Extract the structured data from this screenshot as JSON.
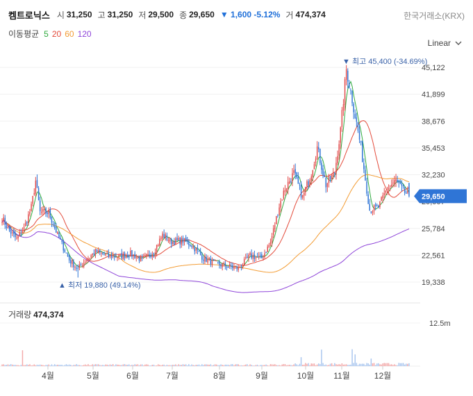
{
  "header": {
    "name": "켐트로닉스",
    "open_label": "시",
    "open": "31,250",
    "high_label": "고",
    "high": "31,250",
    "low_label": "저",
    "low": "29,500",
    "close_label": "종",
    "close": "29,650",
    "change": "▼ 1,600 -5.12%",
    "volume_label": "거",
    "volume": "474,374"
  },
  "exchange": "한국거래소(KRX)",
  "ma": {
    "label": "이동평균",
    "items": [
      {
        "period": "5",
        "color": "#2eaa3c"
      },
      {
        "period": "20",
        "color": "#e34a3a"
      },
      {
        "period": "60",
        "color": "#f39c33"
      },
      {
        "period": "120",
        "color": "#8e44d9"
      }
    ]
  },
  "scale": {
    "label": "Linear"
  },
  "volume_panel": {
    "label": "거래량",
    "value": "474,374"
  },
  "chart_data": {
    "type": "candlestick",
    "y_ticks": [
      "45,122",
      "41,899",
      "38,676",
      "35,453",
      "32,230",
      "29,007",
      "25,784",
      "22,561",
      "19,338"
    ],
    "ylim": [
      18500,
      47000
    ],
    "current_price": "29,650",
    "max_annotation": "▼ 최고 45,400 (-34.69%)",
    "min_annotation": "▲ 최저 19,880 (49.14%)",
    "volume_tick": "12.5m",
    "volume_max": 12500000,
    "months": [
      "4월",
      "5월",
      "6월",
      "7월",
      "8월",
      "9월",
      "10월",
      "11월",
      "12월"
    ],
    "anchors": [
      [
        0,
        27000
      ],
      [
        5,
        25500
      ],
      [
        10,
        24500
      ],
      [
        15,
        25800
      ],
      [
        20,
        28300
      ],
      [
        23,
        31500
      ],
      [
        26,
        27700
      ],
      [
        32,
        27700
      ],
      [
        38,
        25000
      ],
      [
        46,
        22000
      ],
      [
        52,
        20900
      ],
      [
        57,
        21900
      ],
      [
        64,
        23000
      ],
      [
        72,
        22500
      ],
      [
        80,
        22400
      ],
      [
        88,
        22700
      ],
      [
        96,
        22000
      ],
      [
        104,
        23000
      ],
      [
        110,
        25000
      ],
      [
        116,
        24200
      ],
      [
        124,
        24300
      ],
      [
        130,
        23800
      ],
      [
        138,
        22200
      ],
      [
        148,
        21500
      ],
      [
        156,
        21200
      ],
      [
        162,
        21000
      ],
      [
        170,
        22500
      ],
      [
        178,
        22200
      ],
      [
        184,
        24100
      ],
      [
        190,
        28500
      ],
      [
        194,
        30600
      ],
      [
        200,
        32400
      ],
      [
        206,
        29500
      ],
      [
        212,
        32500
      ],
      [
        216,
        35500
      ],
      [
        222,
        31000
      ],
      [
        228,
        32500
      ],
      [
        232,
        37500
      ],
      [
        236,
        44900
      ],
      [
        240,
        41300
      ],
      [
        246,
        35500
      ],
      [
        252,
        28000
      ],
      [
        258,
        28300
      ],
      [
        264,
        30600
      ],
      [
        270,
        31500
      ],
      [
        275,
        30300
      ],
      [
        279,
        29650
      ]
    ],
    "volume_spikes": [
      [
        14,
        4600000
      ],
      [
        205,
        2600000
      ],
      [
        219,
        4800000
      ],
      [
        240,
        4900000
      ],
      [
        242,
        3400000
      ],
      [
        253,
        2200000
      ]
    ]
  }
}
